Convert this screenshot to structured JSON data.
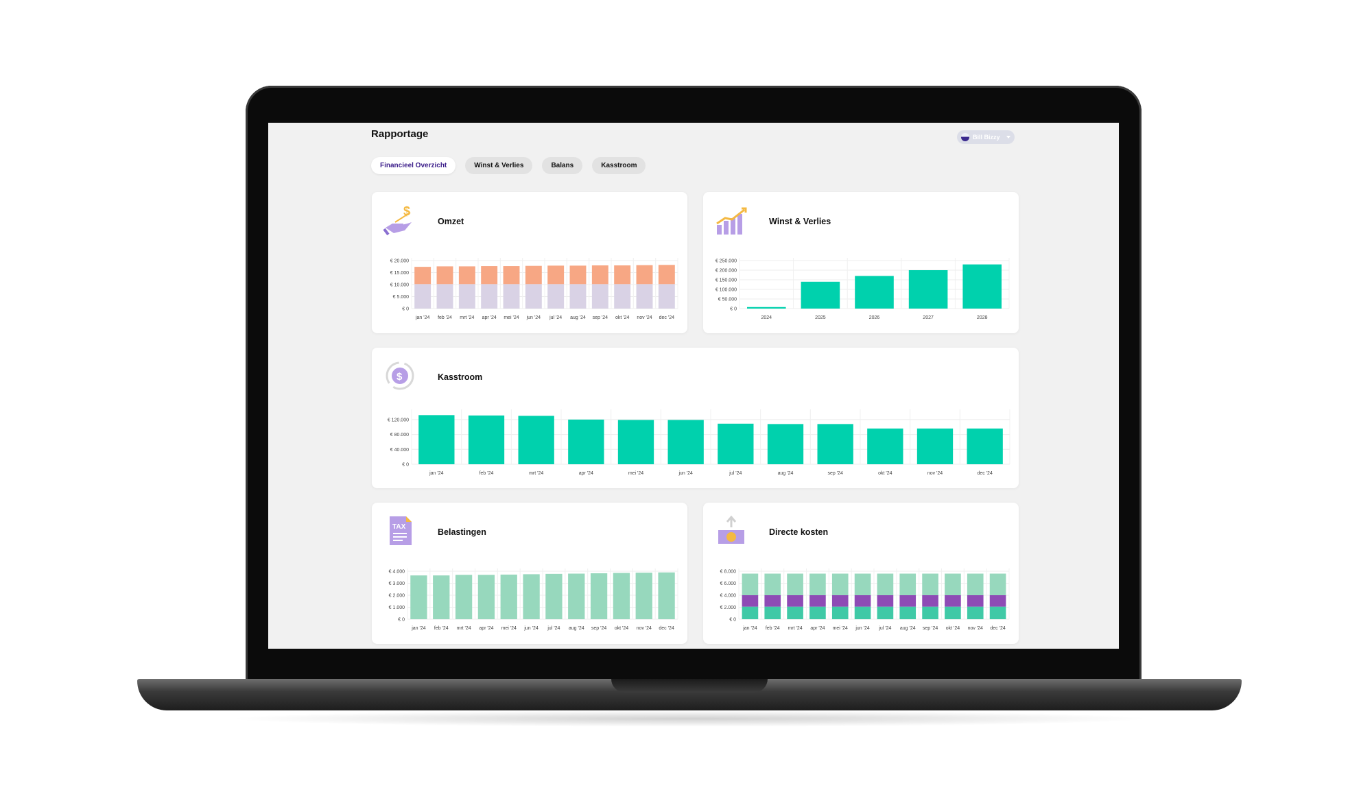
{
  "page_title": "Rapportage",
  "user": {
    "name": "Bill Bizzy"
  },
  "tabs": [
    {
      "label": "Financieel Overzicht",
      "active": true
    },
    {
      "label": "Winst & Verlies",
      "active": false
    },
    {
      "label": "Balans",
      "active": false
    },
    {
      "label": "Kasstroom",
      "active": false
    }
  ],
  "colors": {
    "accent": "#3c1e8a",
    "teal": "#00d1ad",
    "salmon": "#f7a784",
    "lilac": "#d9d2e5",
    "mint": "#97d8bd",
    "purple": "#8e4bb5",
    "green": "#3fc9a6"
  },
  "cards": {
    "omzet": {
      "title": "Omzet",
      "icon": "money-hand-icon"
    },
    "winst": {
      "title": "Winst & Verlies",
      "icon": "growth-bars-icon"
    },
    "kasstroom": {
      "title": "Kasstroom",
      "icon": "cashflow-cycle-icon"
    },
    "belastingen": {
      "title": "Belastingen",
      "icon": "tax-document-icon"
    },
    "kosten": {
      "title": "Directe kosten",
      "icon": "money-out-icon"
    }
  },
  "chart_data": [
    {
      "id": "omzet",
      "type": "bar",
      "stacked": true,
      "categories": [
        "jan '24",
        "feb '24",
        "mrt '24",
        "apr '24",
        "mei '24",
        "jun '24",
        "jul '24",
        "aug '24",
        "sep '24",
        "okt '24",
        "nov '24",
        "dec '24"
      ],
      "series": [
        {
          "values": [
            10200,
            10200,
            10200,
            10200,
            10200,
            10200,
            10200,
            10200,
            10200,
            10200,
            10200,
            10200
          ],
          "color": "#d9d2e5"
        },
        {
          "values": [
            7200,
            7400,
            7400,
            7500,
            7500,
            7600,
            7700,
            7700,
            7800,
            7800,
            7900,
            8000
          ],
          "color": "#f7a784"
        }
      ],
      "yticks": [
        "€ 0",
        "€ 5.000",
        "€ 10.000",
        "€ 15.000",
        "€ 20.000"
      ],
      "ylim": [
        0,
        20000
      ]
    },
    {
      "id": "winst",
      "type": "bar",
      "categories": [
        "2024",
        "2025",
        "2026",
        "2027",
        "2028"
      ],
      "series": [
        {
          "values": [
            8000,
            140000,
            170000,
            200000,
            230000
          ],
          "color": "#00d1ad"
        }
      ],
      "yticks": [
        "€ 0",
        "€ 50.000",
        "€ 100.000",
        "€ 150.000",
        "€ 200.000",
        "€ 250.000"
      ],
      "ylim": [
        0,
        250000
      ]
    },
    {
      "id": "kasstroom",
      "type": "bar",
      "categories": [
        "jan '24",
        "feb '24",
        "mrt '24",
        "apr '24",
        "mei '24",
        "jun '24",
        "jul '24",
        "aug '24",
        "sep '24",
        "okt '24",
        "nov '24",
        "dec '24"
      ],
      "series": [
        {
          "values": [
            132000,
            131000,
            130000,
            120000,
            119000,
            119000,
            109000,
            108000,
            108000,
            96000,
            96000,
            96000
          ],
          "color": "#00d1ad"
        }
      ],
      "yticks": [
        "€ 0",
        "€ 40.000",
        "€ 80.000",
        "€ 120.000"
      ],
      "ylim": [
        0,
        140000
      ]
    },
    {
      "id": "belastingen",
      "type": "bar",
      "categories": [
        "jan '24",
        "feb '24",
        "mrt '24",
        "apr '24",
        "mei '24",
        "jun '24",
        "jul '24",
        "aug '24",
        "sep '24",
        "okt '24",
        "nov '24",
        "dec '24"
      ],
      "series": [
        {
          "values": [
            3650,
            3650,
            3700,
            3700,
            3720,
            3750,
            3780,
            3800,
            3830,
            3860,
            3880,
            3900
          ],
          "color": "#97d8bd"
        }
      ],
      "yticks": [
        "€ 0",
        "€ 1.000",
        "€ 2.000",
        "€ 3.000",
        "€ 4.000"
      ],
      "ylim": [
        0,
        4000
      ]
    },
    {
      "id": "kosten",
      "type": "bar",
      "stacked": true,
      "categories": [
        "jan '24",
        "feb '24",
        "mrt '24",
        "apr '24",
        "mei '24",
        "jun '24",
        "jul '24",
        "aug '24",
        "sep '24",
        "okt '24",
        "nov '24",
        "dec '24"
      ],
      "series": [
        {
          "values": [
            2100,
            2100,
            2100,
            2100,
            2100,
            2100,
            2100,
            2100,
            2100,
            2100,
            2100,
            2100
          ],
          "color": "#3fc9a6"
        },
        {
          "values": [
            1900,
            1900,
            1900,
            1900,
            1900,
            1900,
            1900,
            1900,
            1900,
            1900,
            1900,
            1900
          ],
          "color": "#8e4bb5"
        },
        {
          "values": [
            3600,
            3600,
            3600,
            3600,
            3600,
            3600,
            3600,
            3600,
            3600,
            3600,
            3600,
            3600
          ],
          "color": "#97d8bd"
        }
      ],
      "yticks": [
        "€ 0",
        "€ 2.000",
        "€ 4.000",
        "€ 6.000",
        "€ 8.000"
      ],
      "ylim": [
        0,
        8000
      ]
    }
  ]
}
